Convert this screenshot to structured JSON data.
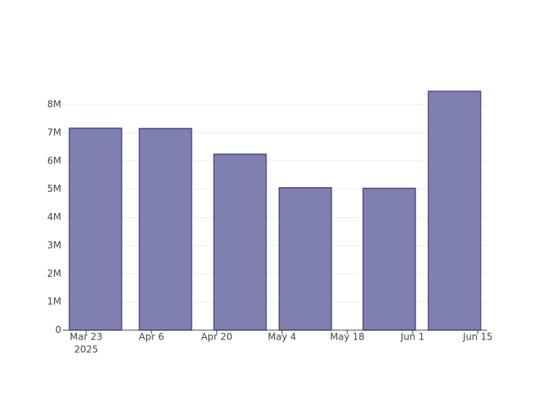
{
  "chart_data": {
    "type": "bar",
    "x": [
      "2025-03-25",
      "2025-04-09",
      "2025-04-25",
      "2025-05-09",
      "2025-05-27",
      "2025-06-10"
    ],
    "values": [
      7160000,
      7150000,
      6240000,
      5050000,
      5030000,
      8470000
    ],
    "color": "#7f7fb0",
    "edge_color": "#4b4b8a",
    "xlim": [
      "2025-03-18",
      "2025-06-17"
    ],
    "xticks": [
      {
        "value": "2025-03-23",
        "label": "Mar 23"
      },
      {
        "value": "2025-04-06",
        "label": "Apr 6"
      },
      {
        "value": "2025-04-20",
        "label": "Apr 20"
      },
      {
        "value": "2025-05-04",
        "label": "May 4"
      },
      {
        "value": "2025-05-18",
        "label": "May 18"
      },
      {
        "value": "2025-06-01",
        "label": "Jun 1"
      },
      {
        "value": "2025-06-15",
        "label": "Jun 15"
      }
    ],
    "x_year_label": "2025",
    "ylim": [
      0,
      8920000
    ],
    "yticks": [
      0,
      {
        "value": 1000000,
        "label": "1M"
      },
      {
        "value": 2000000,
        "label": "2M"
      },
      {
        "value": 3000000,
        "label": "3M"
      },
      {
        "value": 4000000,
        "label": "4M"
      },
      {
        "value": 5000000,
        "label": "5M"
      },
      {
        "value": 6000000,
        "label": "6M"
      },
      {
        "value": 7000000,
        "label": "7M"
      },
      {
        "value": 8000000,
        "label": "8M"
      }
    ],
    "grid": true
  }
}
